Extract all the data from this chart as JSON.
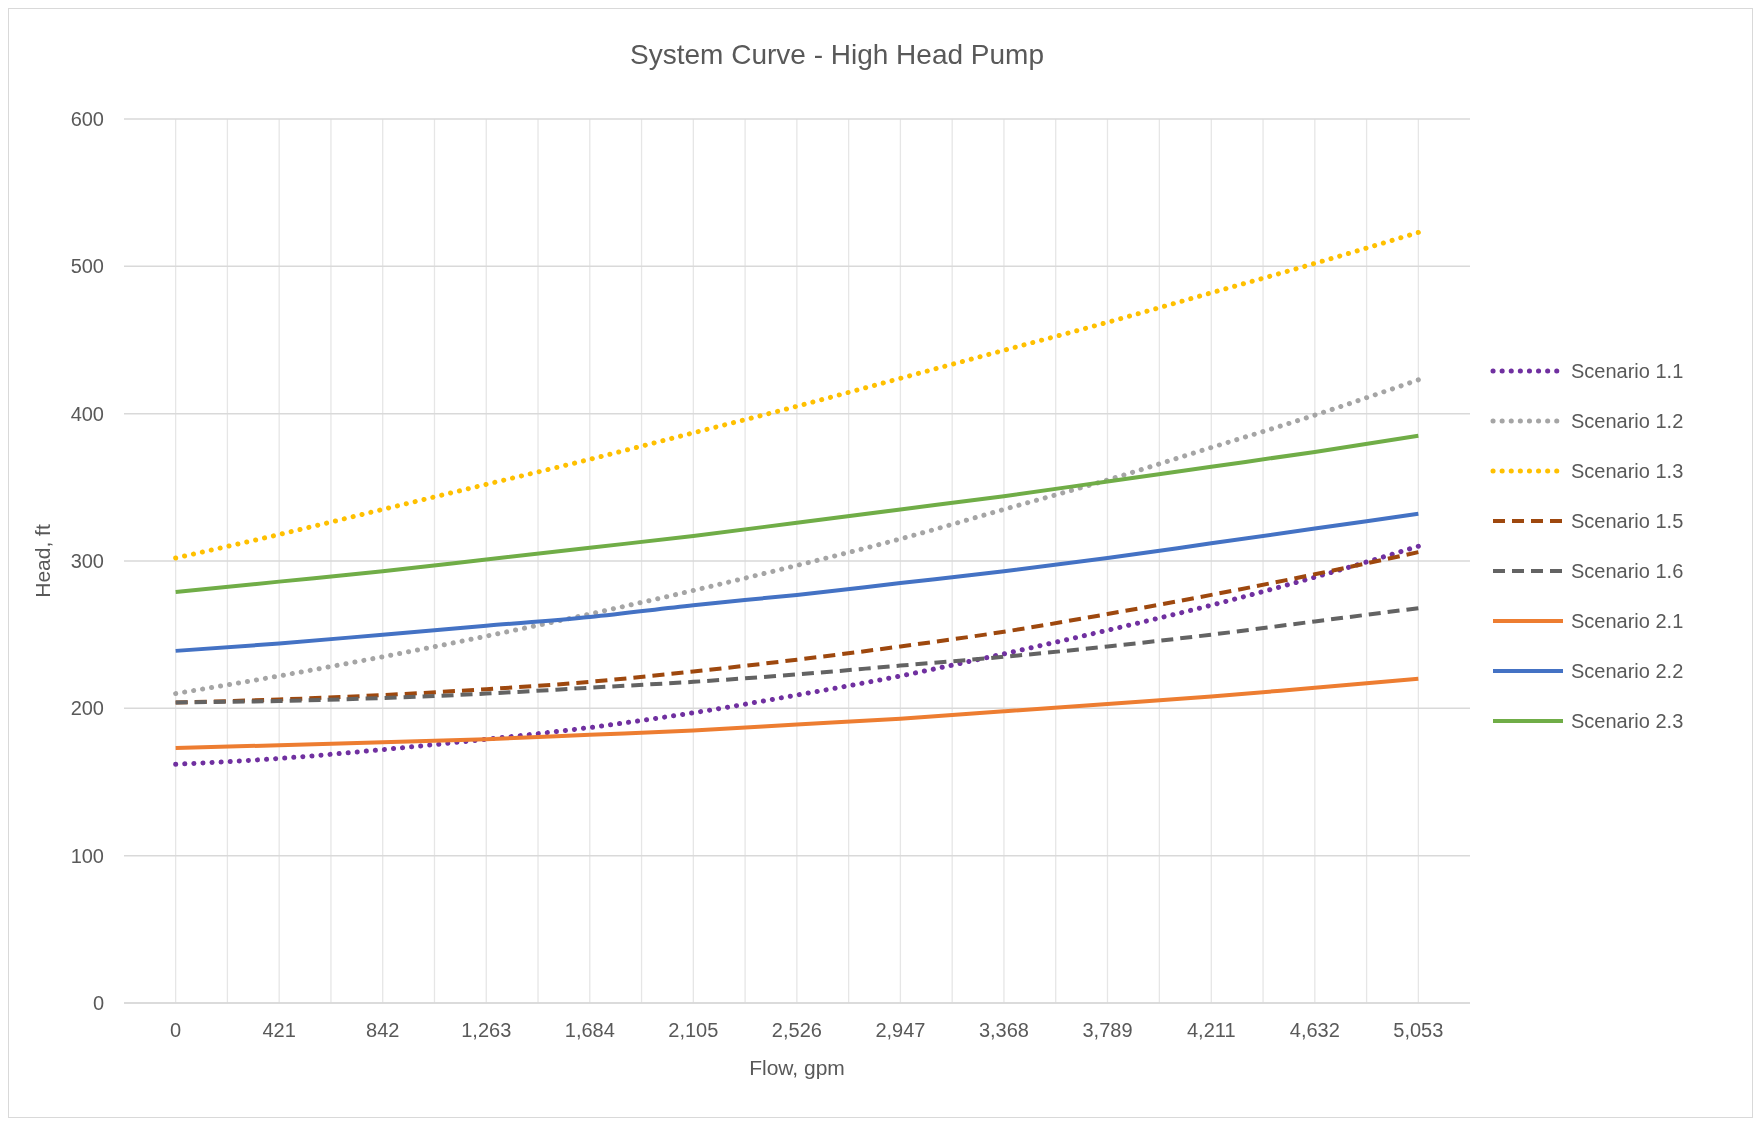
{
  "chart_data": {
    "type": "line",
    "title": "System Curve - High Head Pump",
    "xlabel": "Flow, gpm",
    "ylabel": "Head, ft",
    "x": [
      0,
      421,
      842,
      1263,
      1684,
      2105,
      2526,
      2947,
      3368,
      3789,
      4211,
      4632,
      5053
    ],
    "xlim": [
      -210,
      5263
    ],
    "xticks": [
      0,
      {
        "value": 210.5,
        "label": null
      },
      421,
      {
        "value": 631.5,
        "label": null
      },
      842,
      {
        "value": 1052.5,
        "label": null
      },
      {
        "value": 1263,
        "label": "1,263"
      },
      {
        "value": 1473.5,
        "label": null
      },
      {
        "value": 1684,
        "label": "1,684"
      },
      {
        "value": 1894.5,
        "label": null
      },
      {
        "value": 2105,
        "label": "2,105"
      },
      {
        "value": 2315.5,
        "label": null
      },
      {
        "value": 2526,
        "label": "2,526"
      },
      {
        "value": 2736.5,
        "label": null
      },
      {
        "value": 2947,
        "label": "2,947"
      },
      {
        "value": 3157.5,
        "label": null
      },
      {
        "value": 3368,
        "label": "3,368"
      },
      {
        "value": 3578.5,
        "label": null
      },
      {
        "value": 3789,
        "label": "3,789"
      },
      {
        "value": 4000,
        "label": null
      },
      {
        "value": 4211,
        "label": "4,211"
      },
      {
        "value": 4421.5,
        "label": null
      },
      {
        "value": 4632,
        "label": "4,632"
      },
      {
        "value": 4842.5,
        "label": null
      },
      {
        "value": 5053,
        "label": "5,053"
      }
    ],
    "ylim": [
      0,
      600
    ],
    "yticks": [
      0,
      100,
      200,
      300,
      400,
      500,
      600
    ],
    "grid": true,
    "legend": "right",
    "marker": "none",
    "series": [
      {
        "name": "Scenario 1.1",
        "color": "#7030a0",
        "line_style": "dotted",
        "values": [
          162,
          166,
          172,
          179,
          187,
          197,
          209,
          222,
          237,
          253,
          270,
          289,
          310
        ]
      },
      {
        "name": "Scenario 1.2",
        "color": "#a5a5a5",
        "line_style": "dotted",
        "values": [
          210,
          222,
          235,
          249,
          264,
          280,
          297,
          315,
          335,
          355,
          377,
          399,
          423
        ]
      },
      {
        "name": "Scenario 1.3",
        "color": "#ffc000",
        "line_style": "dotted",
        "values": [
          302,
          318,
          335,
          352,
          369,
          387,
          405,
          424,
          443,
          462,
          482,
          502,
          523
        ]
      },
      {
        "name": "Scenario 1.5",
        "color": "#9e480e",
        "line_style": "dashed",
        "values": [
          204,
          206,
          209,
          213,
          218,
          225,
          233,
          242,
          252,
          264,
          277,
          291,
          306
        ]
      },
      {
        "name": "Scenario 1.6",
        "color": "#636363",
        "line_style": "dashed",
        "values": [
          204,
          205,
          207,
          210,
          214,
          218,
          223,
          229,
          235,
          242,
          250,
          259,
          268
        ]
      },
      {
        "name": "Scenario 2.1",
        "color": "#ed7d31",
        "line_style": "solid",
        "values": [
          173,
          175,
          177,
          179,
          182,
          185,
          189,
          193,
          198,
          203,
          208,
          214,
          220
        ]
      },
      {
        "name": "Scenario 2.2",
        "color": "#4472c4",
        "line_style": "solid",
        "values": [
          239,
          244,
          250,
          256,
          262,
          270,
          277,
          285,
          293,
          302,
          312,
          322,
          332
        ]
      },
      {
        "name": "Scenario 2.3",
        "color": "#70ad47",
        "line_style": "solid",
        "values": [
          279,
          286,
          293,
          301,
          309,
          317,
          326,
          335,
          344,
          354,
          364,
          374,
          385
        ]
      }
    ]
  }
}
